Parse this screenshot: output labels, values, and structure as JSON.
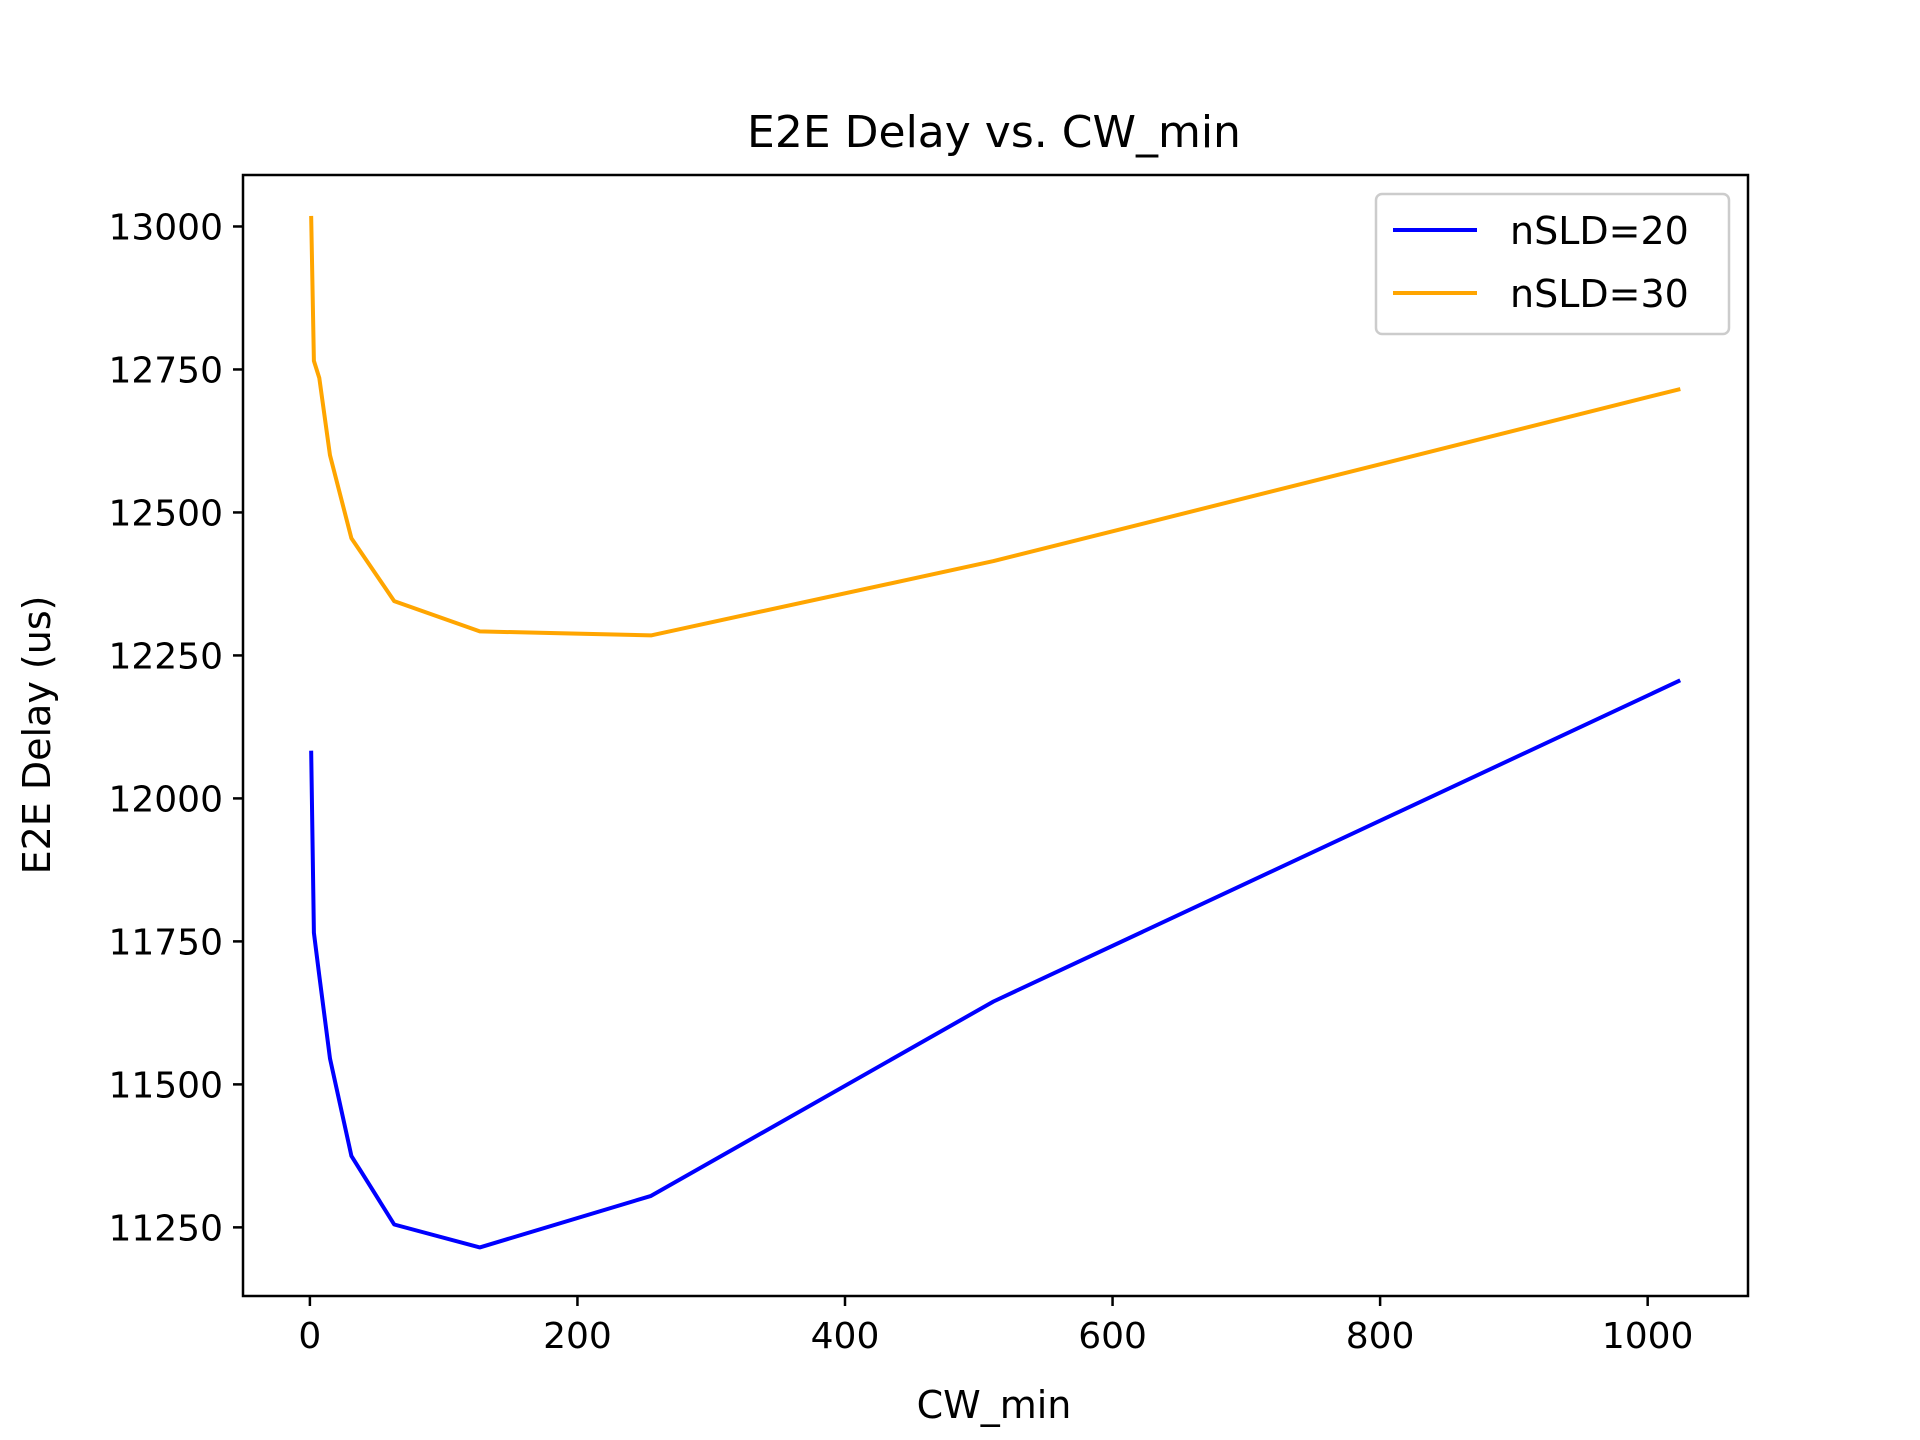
{
  "chart_data": {
    "type": "line",
    "title": "E2E Delay vs. CW_min",
    "xlabel": "CW_min",
    "ylabel": "E2E Delay (us)",
    "xlim": [
      -50,
      1075
    ],
    "ylim": [
      11130,
      13090
    ],
    "xticks": [
      0,
      200,
      400,
      600,
      800,
      1000
    ],
    "yticks": [
      11250,
      11500,
      11750,
      12000,
      12250,
      12500,
      12750,
      13000
    ],
    "grid": false,
    "legend_position": "top-right",
    "series": [
      {
        "name": "nSLD=20",
        "color": "#0000ff",
        "x": [
          1,
          3,
          7,
          15,
          31,
          63,
          127,
          255,
          511,
          1023
        ],
        "y": [
          12080,
          11765,
          11690,
          11545,
          11375,
          11255,
          11215,
          11305,
          11645,
          12205
        ]
      },
      {
        "name": "nSLD=30",
        "color": "#ffa500",
        "x": [
          1,
          3,
          7,
          15,
          31,
          63,
          127,
          255,
          511,
          1023
        ],
        "y": [
          13015,
          12765,
          12735,
          12600,
          12455,
          12345,
          12292,
          12285,
          12415,
          12715
        ]
      }
    ]
  }
}
